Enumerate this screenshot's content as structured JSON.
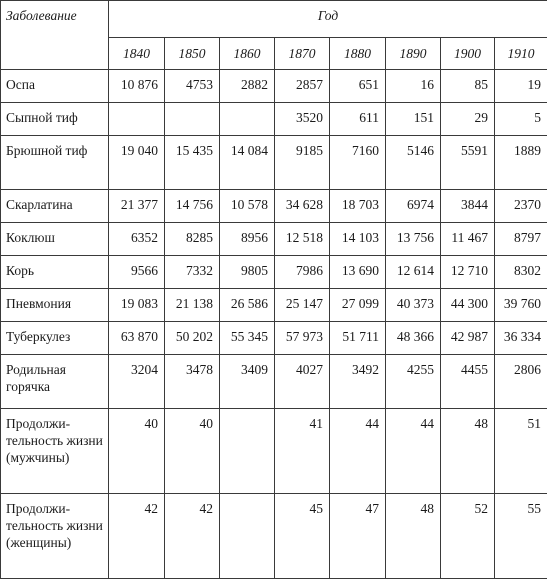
{
  "table": {
    "header_disease": "Заболевание",
    "header_year": "Год",
    "years": [
      "1840",
      "1850",
      "1860",
      "1870",
      "1880",
      "1890",
      "1900",
      "1910"
    ],
    "rows": [
      {
        "name": "Оспа",
        "values": [
          "10 876",
          "4753",
          "2882",
          "2857",
          "651",
          "16",
          "85",
          "19"
        ]
      },
      {
        "name": "Сыпной тиф",
        "values": [
          "",
          "",
          "",
          "3520",
          "611",
          "151",
          "29",
          "5"
        ]
      },
      {
        "name": "Брюшной тиф",
        "values": [
          "19 040",
          "15 435",
          "14 084",
          "9185",
          "7160",
          "5146",
          "5591",
          "1889"
        ]
      },
      {
        "name": "Скарлатина",
        "values": [
          "21 377",
          "14 756",
          "10 578",
          "34 628",
          "18 703",
          "6974",
          "3844",
          "2370"
        ]
      },
      {
        "name": "Коклюш",
        "values": [
          "6352",
          "8285",
          "8956",
          "12 518",
          "14 103",
          "13 756",
          "11 467",
          "8797"
        ]
      },
      {
        "name": "Корь",
        "values": [
          "9566",
          "7332",
          "9805",
          "7986",
          "13 690",
          "12 614",
          "12 710",
          "8302"
        ]
      },
      {
        "name": "Пневмония",
        "values": [
          "19 083",
          "21 138",
          "26 586",
          "25 147",
          "27 099",
          "40 373",
          "44 300",
          "39 760"
        ]
      },
      {
        "name": "Туберкулез",
        "values": [
          "63 870",
          "50 202",
          "55 345",
          "57 973",
          "51 711",
          "48 366",
          "42 987",
          "36 334"
        ]
      },
      {
        "name": "Родильная горячка",
        "values": [
          "3204",
          "3478",
          "3409",
          "4027",
          "3492",
          "4255",
          "4455",
          "2806"
        ]
      },
      {
        "name": "Продолжи-тельность жизни (мужчины)",
        "values": [
          "40",
          "40",
          "",
          "41",
          "44",
          "44",
          "48",
          "51"
        ]
      },
      {
        "name": "Продолжи-тельность жизни (женщины)",
        "values": [
          "42",
          "42",
          "",
          "45",
          "47",
          "48",
          "52",
          "55"
        ]
      }
    ]
  }
}
